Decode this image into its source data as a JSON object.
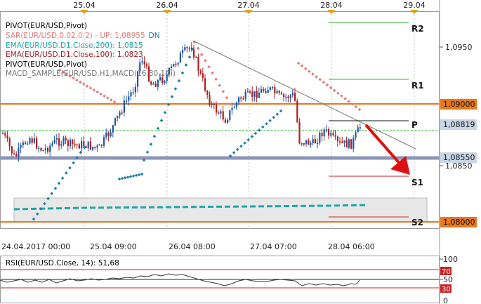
{
  "date_axis": [
    "25.04",
    "26.04",
    "27.04",
    "28.04",
    "29.04"
  ],
  "time_axis": [
    "24.04.2017 00:00",
    "25.04 09:00",
    "26.04 08:00",
    "27.04 07:00",
    "28.04 06:00"
  ],
  "price_axis": {
    "plain": [
      "1,0950",
      "1,0850"
    ],
    "tags": [
      {
        "value": "1,09000",
        "color": "#e8781a"
      },
      {
        "value": "1,08819",
        "color": "#c8d6e6"
      },
      {
        "value": "1,08550",
        "color": "#c8d6e6"
      },
      {
        "value": "1,08000",
        "color": "#e8781a"
      }
    ]
  },
  "legend": [
    {
      "text": "PIVOT(EUR/USD,Pivot)",
      "color": "#000000"
    },
    {
      "text": "SAR(EUR/USD,0.02,0.2) - UP: 1,08955",
      "suffix": "DN",
      "color": "#e87878",
      "suffix_color": "#1a7aa8"
    },
    {
      "text": "EMA(EUR/USD.D1.Close,200): 1,0815",
      "color": "#1aa8a8"
    },
    {
      "text": "EMA(EUR/USD.D1.Close,100): 1,0823",
      "color": "#a02020"
    },
    {
      "text": "PIVOT(EUR/USD,Pivot)",
      "color": "#000000"
    },
    {
      "text": "MACD_SAMPLE(EUR/USD.H1,MACD(16,30,14))",
      "color": "#777777"
    }
  ],
  "pivot_labels": [
    "R2",
    "R1",
    "P",
    "S1",
    "S2"
  ],
  "rsi": {
    "title": "RSI(EUR/USD.Close, 14): 51,68",
    "ticks": [
      {
        "value": "100",
        "style": "plain"
      },
      {
        "value": "70",
        "style": "red"
      },
      {
        "value": "50",
        "style": "plain"
      },
      {
        "value": "30",
        "style": "red"
      },
      {
        "value": "0",
        "style": "plain"
      }
    ]
  },
  "colors": {
    "bull": "#1f56a8",
    "bear": "#b01e1e",
    "sar": "#e87878",
    "sar_dn": "#1a7aa8",
    "ema200": "#1aa8a8",
    "pivot_green": "#22bb22",
    "pivot_red": "#cc2222",
    "trend_arrow": "#dd1111",
    "resistance": "#e8781a",
    "support": "#8c95b8"
  }
}
